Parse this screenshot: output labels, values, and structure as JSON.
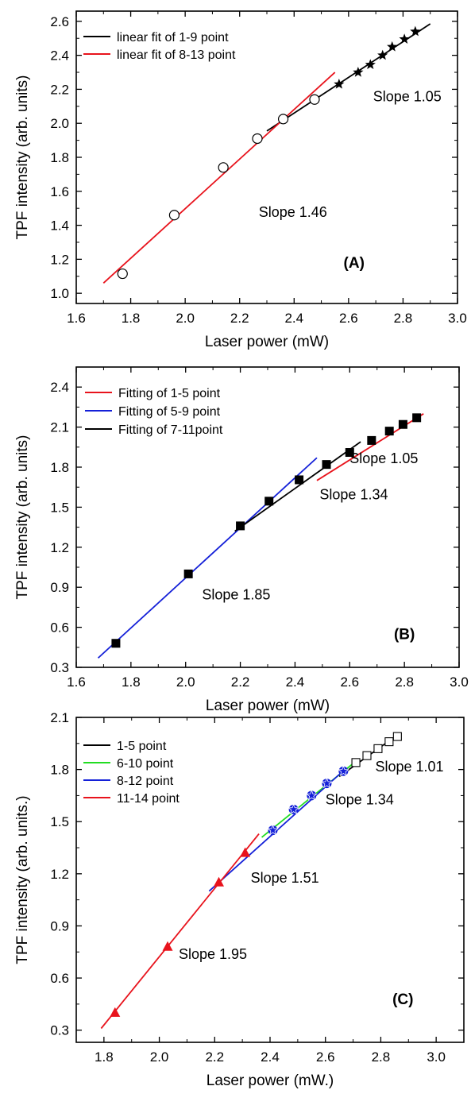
{
  "colors": {
    "black": "#000000",
    "red": "#e8131c",
    "blue": "#1420d8",
    "green": "#22dd22",
    "axis": "#000000"
  },
  "chart_data": [
    {
      "panel": "(A)",
      "type": "scatter",
      "xlabel": "Laser power (mW)",
      "ylabel": "TPF intensity (arb. units)",
      "xlim": [
        1.6,
        3.0
      ],
      "ylim": [
        0.94,
        2.66
      ],
      "xticks": [
        1.6,
        1.8,
        2.0,
        2.2,
        2.4,
        2.6,
        2.8,
        3.0
      ],
      "xtick_labels": [
        "1.6",
        "1.8",
        "2.0",
        "2.2",
        "2.4",
        "2.6",
        "2.8",
        "3.0"
      ],
      "yticks": [
        1.0,
        1.2,
        1.4,
        1.6,
        1.8,
        2.0,
        2.2,
        2.4,
        2.6
      ],
      "ytick_labels": [
        "1.0",
        "1.2",
        "1.4",
        "1.6",
        "1.8",
        "2.0",
        "2.2",
        "2.4",
        "2.6"
      ],
      "legend_position": "top-left",
      "grid": false,
      "series": [
        {
          "name": "linear fit of 1-9 point",
          "kind": "line",
          "color": "black",
          "x": [
            2.3,
            2.9
          ],
          "y": [
            1.955,
            2.585
          ]
        },
        {
          "name": "linear fit of 8-13 point",
          "kind": "line",
          "color": "red",
          "x": [
            1.7,
            2.55
          ],
          "y": [
            1.06,
            2.3
          ]
        },
        {
          "kind": "points",
          "marker": "open-circle",
          "color": "black",
          "x": [
            1.77,
            1.96,
            2.14,
            2.265,
            2.36,
            2.475
          ],
          "y": [
            1.115,
            1.46,
            1.74,
            1.91,
            2.025,
            2.14
          ]
        },
        {
          "kind": "points",
          "marker": "star",
          "color": "black",
          "x": [
            2.565,
            2.635,
            2.68,
            2.725,
            2.76,
            2.805,
            2.845
          ],
          "y": [
            2.23,
            2.3,
            2.345,
            2.4,
            2.45,
            2.495,
            2.54
          ]
        }
      ],
      "annotations": [
        {
          "text": "Slope 1.05",
          "x": 2.69,
          "y": 2.13
        },
        {
          "text": "Slope 1.46",
          "x": 2.27,
          "y": 1.45
        },
        {
          "text": "(A)",
          "x": 2.62,
          "y": 1.15,
          "bold": true
        }
      ]
    },
    {
      "panel": "(B)",
      "type": "scatter",
      "xlabel": "Laser power (mW)",
      "ylabel": "TPF intensity (arb. units)",
      "xlim": [
        1.6,
        3.0
      ],
      "ylim": [
        0.3,
        2.55
      ],
      "xticks": [
        1.6,
        1.8,
        2.0,
        2.2,
        2.4,
        2.6,
        2.8,
        3.0
      ],
      "xtick_labels": [
        "1.6",
        "1.8",
        "2.0",
        "2.2",
        "2.4",
        "2.6",
        "2.8",
        "3.0"
      ],
      "yticks": [
        0.3,
        0.6,
        0.9,
        1.2,
        1.5,
        1.8,
        2.1,
        2.4
      ],
      "ytick_labels": [
        "0.3",
        "0.6",
        "0.9",
        "1.2",
        "1.5",
        "1.8",
        "2.1",
        "2.4"
      ],
      "legend_position": "top-left",
      "grid": false,
      "series": [
        {
          "name": "Fitting of 1-5 point",
          "kind": "line",
          "color": "red",
          "x": [
            2.48,
            2.87
          ],
          "y": [
            1.7,
            2.2
          ]
        },
        {
          "name": "Fitting of 5-9 point",
          "kind": "line",
          "color": "blue",
          "x": [
            1.68,
            2.48
          ],
          "y": [
            0.37,
            1.87
          ]
        },
        {
          "name": "Fitting of 7-11point",
          "kind": "line",
          "color": "black",
          "x": [
            2.18,
            2.64
          ],
          "y": [
            1.32,
            1.99
          ]
        },
        {
          "kind": "points",
          "marker": "filled-square",
          "color": "black",
          "x": [
            1.745,
            2.01,
            2.2,
            2.305,
            2.415,
            2.515,
            2.6,
            2.68,
            2.745,
            2.795,
            2.845
          ],
          "y": [
            0.48,
            1.0,
            1.36,
            1.545,
            1.705,
            1.82,
            1.91,
            2.0,
            2.07,
            2.12,
            2.17
          ]
        }
      ],
      "annotations": [
        {
          "text": "Slope 1.05",
          "x": 2.6,
          "y": 1.83
        },
        {
          "text": "Slope 1.34",
          "x": 2.49,
          "y": 1.56
        },
        {
          "text": "Slope 1.85",
          "x": 2.06,
          "y": 0.81
        },
        {
          "text": "(B)",
          "x": 2.8,
          "y": 0.51,
          "bold": true
        }
      ]
    },
    {
      "panel": "(C)",
      "type": "scatter",
      "xlabel": "Laser power (mW.)",
      "ylabel": "TPF intensity (arb. units.)",
      "xlim": [
        1.7,
        3.1
      ],
      "ylim": [
        0.23,
        2.1
      ],
      "xticks": [
        1.8,
        2.0,
        2.2,
        2.4,
        2.6,
        2.8,
        3.0
      ],
      "xtick_labels": [
        "1.8",
        "2.0",
        "2.2",
        "2.4",
        "2.6",
        "2.8",
        "3.0"
      ],
      "yticks": [
        0.3,
        0.6,
        0.9,
        1.2,
        1.5,
        1.8,
        2.1
      ],
      "ytick_labels": [
        "0.3",
        "0.6",
        "0.9",
        "1.2",
        "1.5",
        "1.8",
        "2.1"
      ],
      "legend_position": "top-left",
      "grid": false,
      "series": [
        {
          "name": "1-5  point",
          "kind": "line",
          "color": "black",
          "x": [
            2.65,
            2.87
          ],
          "y": [
            1.76,
            2.01
          ]
        },
        {
          "name": "6-10 point",
          "kind": "line",
          "color": "green",
          "x": [
            2.37,
            2.72
          ],
          "y": [
            1.41,
            1.86
          ]
        },
        {
          "name": "8-12 point",
          "kind": "line",
          "color": "blue",
          "x": [
            2.18,
            2.67
          ],
          "y": [
            1.1,
            1.8
          ]
        },
        {
          "name": "11-14 point",
          "kind": "line",
          "color": "red",
          "x": [
            1.79,
            2.36
          ],
          "y": [
            0.31,
            1.43
          ]
        },
        {
          "kind": "points",
          "marker": "open-square",
          "color": "black",
          "x": [
            2.71,
            2.75,
            2.79,
            2.83,
            2.86
          ],
          "y": [
            1.84,
            1.88,
            1.92,
            1.96,
            1.99
          ]
        },
        {
          "kind": "points",
          "marker": "blue-circle-star",
          "color": "blue",
          "x": [
            2.41,
            2.485,
            2.55,
            2.605,
            2.665
          ],
          "y": [
            1.45,
            1.57,
            1.65,
            1.72,
            1.79
          ]
        },
        {
          "kind": "points",
          "marker": "red-triangle",
          "color": "red",
          "x": [
            1.84,
            2.03,
            2.215,
            2.31
          ],
          "y": [
            0.4,
            0.78,
            1.15,
            1.32
          ]
        }
      ],
      "annotations": [
        {
          "text": "Slope 1.01",
          "x": 2.78,
          "y": 1.79
        },
        {
          "text": "Slope 1.34",
          "x": 2.6,
          "y": 1.6
        },
        {
          "text": "Slope 1.51",
          "x": 2.33,
          "y": 1.15
        },
        {
          "text": "Slope 1.95",
          "x": 2.07,
          "y": 0.71
        },
        {
          "text": "(C)",
          "x": 2.88,
          "y": 0.45,
          "bold": true
        }
      ]
    }
  ]
}
